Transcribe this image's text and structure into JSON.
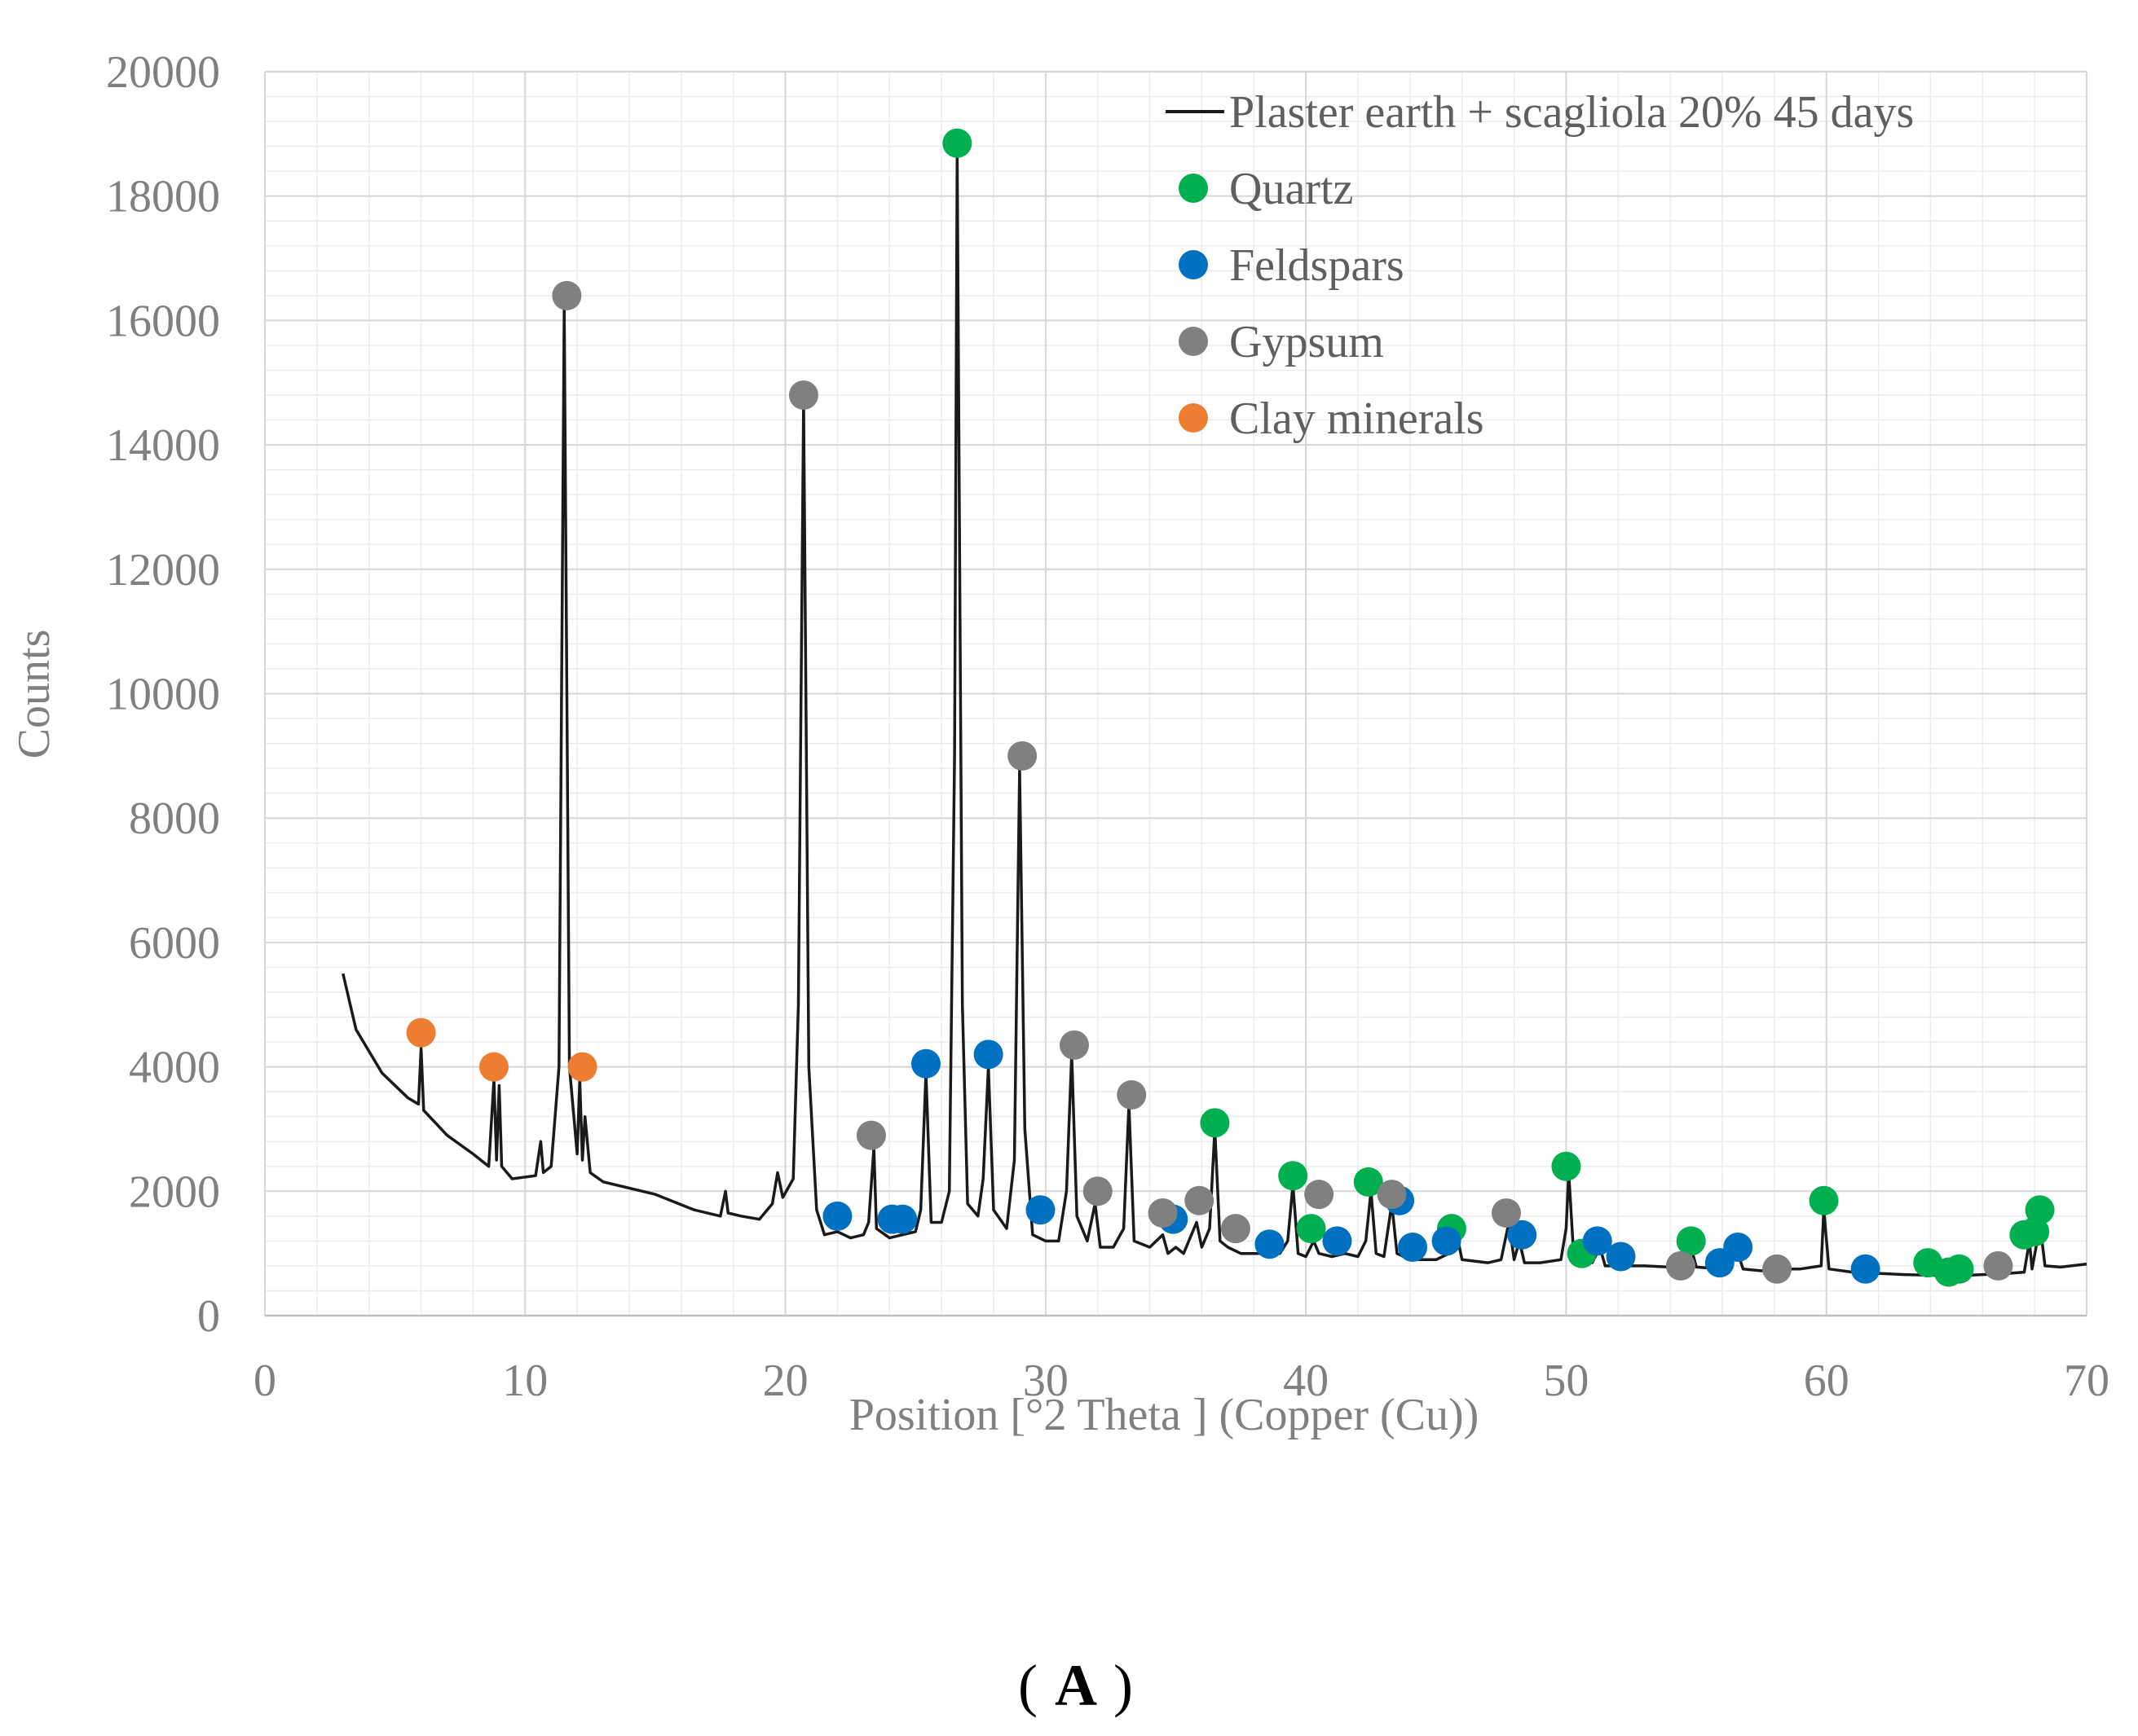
{
  "chart_data": {
    "type": "line",
    "title": "",
    "xlabel": "Position [°2 Theta ] (Copper (Cu))",
    "ylabel": "Counts",
    "xlim": [
      0,
      70
    ],
    "ylim": [
      0,
      20000
    ],
    "x_ticks": [
      0,
      10,
      20,
      30,
      40,
      50,
      60,
      70
    ],
    "y_ticks": [
      0,
      2000,
      4000,
      6000,
      8000,
      10000,
      12000,
      14000,
      16000,
      18000,
      20000
    ],
    "grid": true,
    "legend_position": "top-right",
    "panel_label": "A",
    "series": [
      {
        "name": "Plaster earth + scagliola 20% 45 days",
        "kind": "line",
        "color": "#1a1a1a",
        "points": [
          [
            3.0,
            5500
          ],
          [
            3.5,
            4600
          ],
          [
            4.5,
            3900
          ],
          [
            5.5,
            3500
          ],
          [
            5.9,
            3400
          ],
          [
            6.0,
            4300
          ],
          [
            6.1,
            3300
          ],
          [
            7.0,
            2900
          ],
          [
            8.0,
            2600
          ],
          [
            8.6,
            2400
          ],
          [
            8.8,
            3800
          ],
          [
            8.9,
            2500
          ],
          [
            9.0,
            3700
          ],
          [
            9.1,
            2400
          ],
          [
            9.5,
            2200
          ],
          [
            10.4,
            2250
          ],
          [
            10.6,
            2800
          ],
          [
            10.7,
            2300
          ],
          [
            11.0,
            2400
          ],
          [
            11.3,
            4000
          ],
          [
            11.5,
            16200
          ],
          [
            11.7,
            4000
          ],
          [
            12.0,
            2600
          ],
          [
            12.1,
            3800
          ],
          [
            12.2,
            2500
          ],
          [
            12.3,
            3200
          ],
          [
            12.5,
            2300
          ],
          [
            13.0,
            2150
          ],
          [
            15.0,
            1950
          ],
          [
            16.5,
            1700
          ],
          [
            17.5,
            1600
          ],
          [
            17.7,
            2000
          ],
          [
            17.8,
            1650
          ],
          [
            18.3,
            1600
          ],
          [
            19.0,
            1550
          ],
          [
            19.5,
            1800
          ],
          [
            19.7,
            2300
          ],
          [
            19.9,
            1900
          ],
          [
            20.3,
            2200
          ],
          [
            20.5,
            5000
          ],
          [
            20.7,
            14700
          ],
          [
            20.9,
            4000
          ],
          [
            21.2,
            1700
          ],
          [
            21.5,
            1300
          ],
          [
            22.0,
            1350
          ],
          [
            22.5,
            1250
          ],
          [
            23.0,
            1300
          ],
          [
            23.2,
            1500
          ],
          [
            23.4,
            2700
          ],
          [
            23.5,
            1400
          ],
          [
            24.0,
            1250
          ],
          [
            24.5,
            1300
          ],
          [
            25.0,
            1350
          ],
          [
            25.2,
            1700
          ],
          [
            25.4,
            3900
          ],
          [
            25.6,
            1500
          ],
          [
            26.0,
            1500
          ],
          [
            26.3,
            2000
          ],
          [
            26.5,
            9000
          ],
          [
            26.6,
            18700
          ],
          [
            26.8,
            5000
          ],
          [
            27.0,
            1800
          ],
          [
            27.4,
            1600
          ],
          [
            27.6,
            2200
          ],
          [
            27.8,
            4000
          ],
          [
            28.0,
            1700
          ],
          [
            28.5,
            1400
          ],
          [
            28.8,
            2500
          ],
          [
            29.0,
            8800
          ],
          [
            29.2,
            3000
          ],
          [
            29.5,
            1300
          ],
          [
            30.0,
            1200
          ],
          [
            30.5,
            1200
          ],
          [
            30.8,
            2000
          ],
          [
            31.0,
            4200
          ],
          [
            31.2,
            1600
          ],
          [
            31.6,
            1200
          ],
          [
            31.9,
            1800
          ],
          [
            32.1,
            1100
          ],
          [
            32.6,
            1100
          ],
          [
            33.0,
            1400
          ],
          [
            33.2,
            3400
          ],
          [
            33.4,
            1200
          ],
          [
            34.0,
            1100
          ],
          [
            34.5,
            1300
          ],
          [
            34.7,
            1000
          ],
          [
            35.0,
            1100
          ],
          [
            35.3,
            1000
          ],
          [
            35.8,
            1500
          ],
          [
            36.0,
            1100
          ],
          [
            36.3,
            1400
          ],
          [
            36.5,
            3000
          ],
          [
            36.7,
            1200
          ],
          [
            37.0,
            1100
          ],
          [
            37.5,
            1000
          ],
          [
            38.0,
            1000
          ],
          [
            38.5,
            1000
          ],
          [
            39.0,
            1000
          ],
          [
            39.3,
            1200
          ],
          [
            39.5,
            2100
          ],
          [
            39.7,
            1000
          ],
          [
            40.0,
            950
          ],
          [
            40.3,
            1200
          ],
          [
            40.5,
            1000
          ],
          [
            41.0,
            950
          ],
          [
            41.5,
            1000
          ],
          [
            42.0,
            950
          ],
          [
            42.3,
            1200
          ],
          [
            42.5,
            2000
          ],
          [
            42.7,
            1000
          ],
          [
            43.0,
            950
          ],
          [
            43.3,
            1800
          ],
          [
            43.5,
            1000
          ],
          [
            44.0,
            900
          ],
          [
            45.0,
            900
          ],
          [
            45.5,
            1000
          ],
          [
            45.8,
            1300
          ],
          [
            46.0,
            900
          ],
          [
            47.0,
            850
          ],
          [
            47.5,
            900
          ],
          [
            47.8,
            1500
          ],
          [
            48.0,
            900
          ],
          [
            48.2,
            1200
          ],
          [
            48.4,
            850
          ],
          [
            49.0,
            850
          ],
          [
            49.8,
            900
          ],
          [
            50.0,
            1400
          ],
          [
            50.1,
            2300
          ],
          [
            50.3,
            900
          ],
          [
            50.6,
            900
          ],
          [
            50.8,
            1000
          ],
          [
            51.0,
            850
          ],
          [
            51.3,
            1100
          ],
          [
            51.5,
            800
          ],
          [
            52.0,
            800
          ],
          [
            53.0,
            800
          ],
          [
            54.0,
            780
          ],
          [
            54.5,
            800
          ],
          [
            54.8,
            1100
          ],
          [
            55.0,
            780
          ],
          [
            56.0,
            750
          ],
          [
            56.3,
            900
          ],
          [
            56.6,
            1000
          ],
          [
            56.8,
            750
          ],
          [
            57.5,
            720
          ],
          [
            58.0,
            750
          ],
          [
            59.0,
            750
          ],
          [
            59.8,
            800
          ],
          [
            59.9,
            1700
          ],
          [
            60.1,
            750
          ],
          [
            61.0,
            700
          ],
          [
            62.0,
            680
          ],
          [
            63.0,
            660
          ],
          [
            64.0,
            650
          ],
          [
            65.0,
            640
          ],
          [
            66.0,
            660
          ],
          [
            67.0,
            680
          ],
          [
            67.6,
            700
          ],
          [
            67.8,
            1200
          ],
          [
            67.9,
            750
          ],
          [
            68.1,
            1200
          ],
          [
            68.2,
            1500
          ],
          [
            68.4,
            800
          ],
          [
            69.0,
            780
          ],
          [
            70.0,
            830
          ]
        ]
      },
      {
        "name": "Quartz",
        "kind": "markers",
        "color": "#00b050",
        "points": [
          [
            26.6,
            18850
          ],
          [
            36.5,
            3100
          ],
          [
            39.5,
            2250
          ],
          [
            40.2,
            1400
          ],
          [
            42.4,
            2150
          ],
          [
            45.6,
            1400
          ],
          [
            50.0,
            2400
          ],
          [
            50.6,
            1000
          ],
          [
            54.8,
            1200
          ],
          [
            59.9,
            1850
          ],
          [
            63.9,
            850
          ],
          [
            64.7,
            700
          ],
          [
            65.1,
            750
          ],
          [
            67.6,
            1300
          ],
          [
            68.0,
            1350
          ],
          [
            68.2,
            1700
          ]
        ]
      },
      {
        "name": "Feldspars",
        "kind": "markers",
        "color": "#0070c0",
        "points": [
          [
            22.0,
            1600
          ],
          [
            24.1,
            1550
          ],
          [
            24.5,
            1550
          ],
          [
            25.4,
            4050
          ],
          [
            27.8,
            4200
          ],
          [
            29.8,
            1700
          ],
          [
            34.9,
            1550
          ],
          [
            38.6,
            1150
          ],
          [
            41.2,
            1200
          ],
          [
            43.6,
            1850
          ],
          [
            44.1,
            1100
          ],
          [
            45.4,
            1200
          ],
          [
            48.3,
            1300
          ],
          [
            51.2,
            1200
          ],
          [
            52.1,
            950
          ],
          [
            55.9,
            850
          ],
          [
            56.6,
            1100
          ],
          [
            61.5,
            750
          ]
        ]
      },
      {
        "name": "Gypsum",
        "kind": "markers",
        "color": "#808080",
        "points": [
          [
            11.6,
            16400
          ],
          [
            20.7,
            14800
          ],
          [
            23.3,
            2900
          ],
          [
            29.1,
            9000
          ],
          [
            31.1,
            4350
          ],
          [
            32.0,
            2000
          ],
          [
            33.3,
            3550
          ],
          [
            34.5,
            1650
          ],
          [
            35.9,
            1850
          ],
          [
            37.3,
            1400
          ],
          [
            40.5,
            1950
          ],
          [
            43.3,
            1950
          ],
          [
            47.7,
            1650
          ],
          [
            54.4,
            800
          ],
          [
            58.1,
            750
          ],
          [
            66.6,
            800
          ]
        ]
      },
      {
        "name": "Clay minerals",
        "kind": "markers",
        "color": "#ed7d31",
        "points": [
          [
            6.0,
            4550
          ],
          [
            8.8,
            4000
          ],
          [
            12.2,
            4000
          ]
        ]
      }
    ]
  }
}
